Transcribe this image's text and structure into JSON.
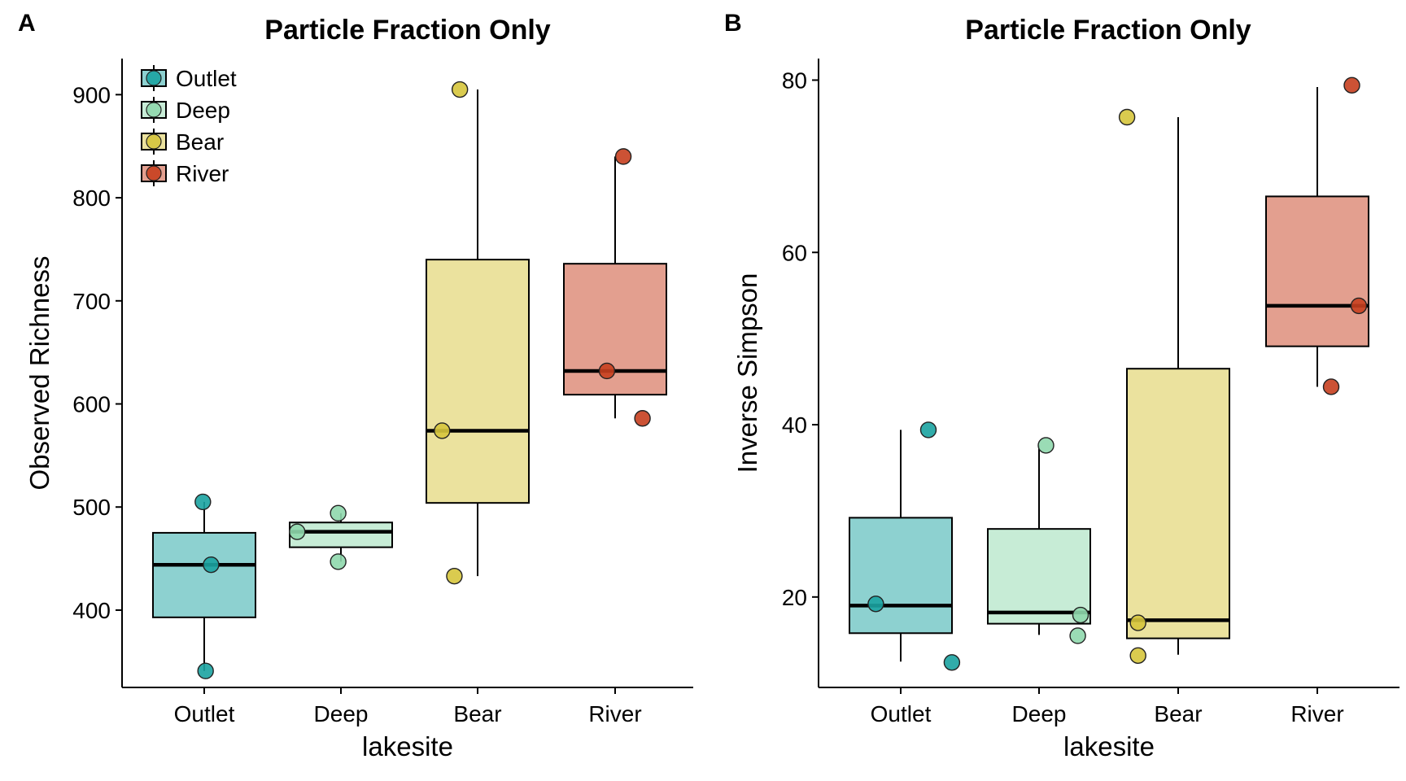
{
  "chart_data": [
    {
      "panel": "A",
      "type": "box",
      "title": "Particle Fraction Only",
      "xlabel": "lakesite",
      "ylabel": "Observed Richness",
      "categories": [
        "Outlet",
        "Deep",
        "Bear",
        "River"
      ],
      "colors": {
        "Outlet": "#1ba3a1",
        "Deep": "#8fd8ad",
        "Bear": "#d6c53c",
        "River": "#c63f1f"
      },
      "ylim": [
        325,
        935
      ],
      "yticks": [
        400,
        500,
        600,
        700,
        800,
        900
      ],
      "boxes": [
        {
          "category": "Outlet",
          "whisker_low": 341,
          "q1": 393,
          "median": 444,
          "q3": 475,
          "whisker_high": 505
        },
        {
          "category": "Deep",
          "whisker_low": 447,
          "q1": 461,
          "median": 476,
          "q3": 485,
          "whisker_high": 494
        },
        {
          "category": "Bear",
          "whisker_low": 433,
          "q1": 504,
          "median": 574,
          "q3": 740,
          "whisker_high": 905
        },
        {
          "category": "River",
          "whisker_low": 586,
          "q1": 609,
          "median": 632,
          "q3": 736,
          "whisker_high": 840
        }
      ],
      "points": [
        {
          "category": "Outlet",
          "jitter": -0.01,
          "y": 505
        },
        {
          "category": "Outlet",
          "jitter": 0.05,
          "y": 444
        },
        {
          "category": "Outlet",
          "jitter": 0.01,
          "y": 341
        },
        {
          "category": "Deep",
          "jitter": -0.32,
          "y": 476
        },
        {
          "category": "Deep",
          "jitter": -0.02,
          "y": 494
        },
        {
          "category": "Deep",
          "jitter": -0.02,
          "y": 447
        },
        {
          "category": "Bear",
          "jitter": -0.13,
          "y": 905
        },
        {
          "category": "Bear",
          "jitter": -0.26,
          "y": 574
        },
        {
          "category": "Bear",
          "jitter": -0.17,
          "y": 433
        },
        {
          "category": "River",
          "jitter": 0.06,
          "y": 840
        },
        {
          "category": "River",
          "jitter": -0.06,
          "y": 632
        },
        {
          "category": "River",
          "jitter": 0.2,
          "y": 586
        }
      ],
      "legend": {
        "placement": "top-left",
        "entries": [
          "Outlet",
          "Deep",
          "Bear",
          "River"
        ]
      }
    },
    {
      "panel": "B",
      "type": "box",
      "title": "Particle Fraction Only",
      "xlabel": "lakesite",
      "ylabel": "Inverse Simpson",
      "categories": [
        "Outlet",
        "Deep",
        "Bear",
        "River"
      ],
      "colors": {
        "Outlet": "#1ba3a1",
        "Deep": "#8fd8ad",
        "Bear": "#d6c53c",
        "River": "#c63f1f"
      },
      "ylim": [
        9.5,
        82.5
      ],
      "yticks": [
        20,
        40,
        60,
        80
      ],
      "boxes": [
        {
          "category": "Outlet",
          "whisker_low": 12.5,
          "q1": 15.8,
          "median": 19.0,
          "q3": 29.2,
          "whisker_high": 39.4
        },
        {
          "category": "Deep",
          "whisker_low": 15.6,
          "q1": 16.9,
          "median": 18.2,
          "q3": 27.9,
          "whisker_high": 37.6
        },
        {
          "category": "Bear",
          "whisker_low": 13.3,
          "q1": 15.2,
          "median": 17.3,
          "q3": 46.5,
          "whisker_high": 75.7
        },
        {
          "category": "River",
          "whisker_low": 44.4,
          "q1": 49.1,
          "median": 53.8,
          "q3": 66.5,
          "whisker_high": 79.2
        }
      ],
      "points": [
        {
          "category": "Outlet",
          "jitter": 0.2,
          "y": 39.4
        },
        {
          "category": "Outlet",
          "jitter": -0.18,
          "y": 19.2
        },
        {
          "category": "Outlet",
          "jitter": 0.37,
          "y": 12.4
        },
        {
          "category": "Deep",
          "jitter": 0.05,
          "y": 37.6
        },
        {
          "category": "Deep",
          "jitter": 0.3,
          "y": 17.9
        },
        {
          "category": "Deep",
          "jitter": 0.28,
          "y": 15.5
        },
        {
          "category": "Bear",
          "jitter": -0.37,
          "y": 75.7
        },
        {
          "category": "Bear",
          "jitter": -0.29,
          "y": 17.0
        },
        {
          "category": "Bear",
          "jitter": -0.29,
          "y": 13.2
        },
        {
          "category": "River",
          "jitter": 0.25,
          "y": 79.4
        },
        {
          "category": "River",
          "jitter": 0.3,
          "y": 53.8
        },
        {
          "category": "River",
          "jitter": 0.1,
          "y": 44.4
        }
      ]
    }
  ]
}
